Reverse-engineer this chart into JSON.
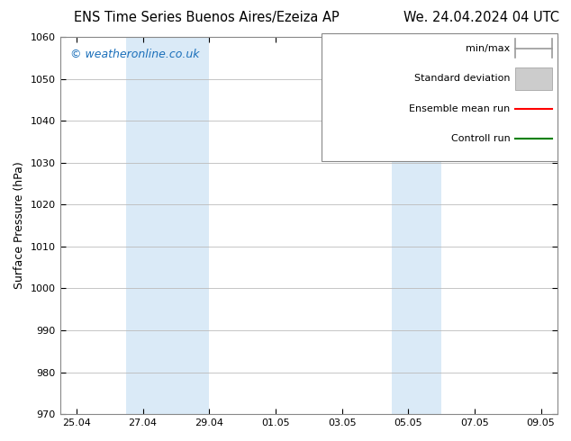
{
  "title_left": "ENS Time Series Buenos Aires/Ezeiza AP",
  "title_right": "We. 24.04.2024 04 UTC",
  "ylabel": "Surface Pressure (hPa)",
  "ylim": [
    970,
    1060
  ],
  "yticks": [
    970,
    980,
    990,
    1000,
    1010,
    1020,
    1030,
    1040,
    1050,
    1060
  ],
  "xlim": [
    0,
    15
  ],
  "xtick_labels": [
    "25.04",
    "27.04",
    "29.04",
    "01.05",
    "03.05",
    "05.05",
    "07.05",
    "09.05"
  ],
  "xtick_positions": [
    0.5,
    2.5,
    4.5,
    6.5,
    8.5,
    10.5,
    12.5,
    14.5
  ],
  "shaded_bands": [
    {
      "x_start": 2.0,
      "x_end": 4.5,
      "color": "#daeaf7"
    },
    {
      "x_start": 10.0,
      "x_end": 11.5,
      "color": "#daeaf7"
    }
  ],
  "legend_labels": [
    "min/max",
    "Standard deviation",
    "Ensemble mean run",
    "Controll run"
  ],
  "legend_colors_line": [
    "#aaaaaa",
    "#cccccc",
    "#ff0000",
    "#008000"
  ],
  "copyright_text": "© weatheronline.co.uk",
  "copyright_color": "#1a6fba",
  "background_color": "#ffffff",
  "grid_color": "#bbbbbb",
  "title_fontsize": 10.5,
  "axis_label_fontsize": 9,
  "tick_fontsize": 8,
  "legend_fontsize": 8,
  "copyright_fontsize": 9
}
